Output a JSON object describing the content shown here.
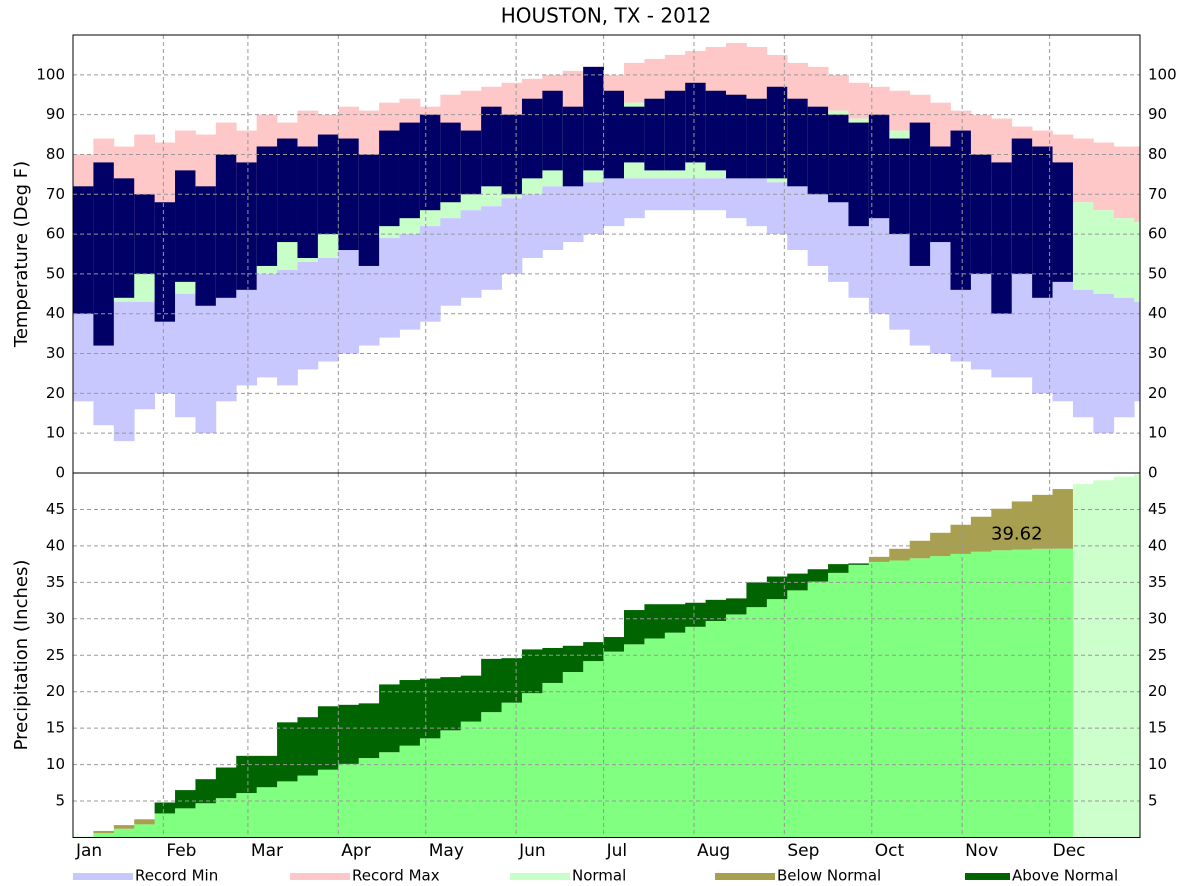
{
  "chart_data": [
    {
      "type": "range",
      "title": "HOUSTON, TX - 2012",
      "ylabel": "Temperature (Deg F)",
      "ylim": [
        0,
        110
      ],
      "yticks": [
        0,
        10,
        20,
        30,
        40,
        50,
        60,
        70,
        80,
        90,
        100
      ],
      "grid": true,
      "series": [
        {
          "name": "Record Min",
          "color": "#c8c8ff",
          "values": [
            18,
            12,
            8,
            16,
            20,
            14,
            10,
            18,
            22,
            24,
            22,
            26,
            28,
            30,
            32,
            34,
            36,
            38,
            42,
            44,
            46,
            50,
            54,
            56,
            58,
            60,
            62,
            64,
            66,
            66,
            66,
            66,
            64,
            62,
            60,
            56,
            52,
            48,
            44,
            40,
            36,
            32,
            30,
            28,
            26,
            24,
            24,
            20,
            18,
            14,
            10,
            14,
            18
          ]
        },
        {
          "name": "Record Max",
          "color": "#ffc8c8",
          "values": [
            80,
            84,
            82,
            85,
            83,
            86,
            85,
            88,
            86,
            90,
            88,
            91,
            90,
            92,
            91,
            93,
            94,
            92,
            95,
            96,
            97,
            98,
            99,
            100,
            101,
            102,
            100,
            103,
            104,
            105,
            106,
            107,
            108,
            107,
            105,
            103,
            102,
            100,
            98,
            97,
            96,
            95,
            93,
            91,
            90,
            89,
            87,
            86,
            85,
            84,
            83,
            82,
            82
          ]
        },
        {
          "name": "Normal",
          "color": "#c8ffc8",
          "low": [
            43,
            43,
            43,
            43,
            44,
            45,
            46,
            47,
            48,
            50,
            51,
            53,
            54,
            56,
            57,
            59,
            60,
            62,
            64,
            66,
            67,
            69,
            70,
            72,
            73,
            73,
            74,
            74,
            74,
            74,
            74,
            74,
            74,
            74,
            73,
            72,
            71,
            70,
            68,
            66,
            64,
            62,
            60,
            58,
            56,
            54,
            52,
            50,
            48,
            46,
            45,
            44,
            43
          ],
          "high": [
            63,
            63,
            63,
            63,
            64,
            65,
            66,
            67,
            68,
            70,
            71,
            73,
            74,
            76,
            77,
            79,
            80,
            82,
            83,
            85,
            86,
            87,
            89,
            90,
            91,
            92,
            93,
            93,
            94,
            94,
            94,
            94,
            94,
            94,
            93,
            93,
            92,
            91,
            89,
            88,
            86,
            84,
            82,
            80,
            78,
            76,
            74,
            72,
            70,
            68,
            66,
            64,
            63
          ]
        },
        {
          "color": "#000066",
          "low": [
            40,
            32,
            44,
            50,
            38,
            48,
            42,
            44,
            46,
            52,
            58,
            54,
            60,
            56,
            52,
            62,
            64,
            66,
            68,
            70,
            72,
            70,
            74,
            76,
            72,
            76,
            74,
            78,
            76,
            76,
            78,
            76,
            74,
            74,
            74,
            72,
            70,
            68,
            62,
            64,
            60,
            52,
            58,
            46,
            50,
            40,
            50,
            44,
            48,
            null,
            null,
            null,
            null
          ],
          "high": [
            72,
            78,
            74,
            70,
            68,
            76,
            72,
            80,
            78,
            82,
            84,
            82,
            85,
            84,
            80,
            86,
            88,
            90,
            88,
            86,
            92,
            90,
            94,
            96,
            92,
            102,
            96,
            92,
            94,
            96,
            98,
            96,
            95,
            94,
            97,
            94,
            92,
            90,
            88,
            90,
            84,
            88,
            82,
            86,
            80,
            78,
            84,
            82,
            78,
            null,
            null,
            null,
            null
          ]
        }
      ]
    },
    {
      "type": "area",
      "ylabel": "Precipitation (Inches)",
      "x": [
        1,
        8,
        15,
        22,
        29,
        36,
        43,
        50,
        57,
        64,
        71,
        78,
        85,
        92,
        99,
        106,
        113,
        120,
        127,
        134,
        141,
        148,
        155,
        162,
        169,
        176,
        183,
        190,
        197,
        204,
        211,
        218,
        225,
        232,
        239,
        246,
        253,
        260,
        267,
        274,
        281,
        288,
        295,
        302,
        309,
        316,
        323,
        330,
        337,
        344,
        351,
        358,
        365
      ],
      "xlim": [
        1,
        367
      ],
      "xticks": [
        {
          "value": 1,
          "label": "Jan"
        },
        {
          "value": 32,
          "label": "Feb"
        },
        {
          "value": 61,
          "label": "Mar"
        },
        {
          "value": 92,
          "label": "Apr"
        },
        {
          "value": 122,
          "label": "May"
        },
        {
          "value": 153,
          "label": "Jun"
        },
        {
          "value": 183,
          "label": "Jul"
        },
        {
          "value": 214,
          "label": "Aug"
        },
        {
          "value": 245,
          "label": "Sep"
        },
        {
          "value": 275,
          "label": "Oct"
        },
        {
          "value": 306,
          "label": "Nov"
        },
        {
          "value": 336,
          "label": "Dec"
        }
      ],
      "ylim": [
        0,
        50
      ],
      "yticks": [
        5,
        10,
        15,
        20,
        25,
        30,
        35,
        40,
        45
      ],
      "grid": true,
      "series": [
        {
          "color": "#80ff80",
          "future_color": "#ccffcc",
          "values": [
            0.1,
            0.9,
            1.7,
            2.5,
            3.3,
            4.0,
            4.7,
            5.4,
            6.1,
            6.9,
            7.7,
            8.5,
            9.3,
            10.1,
            10.9,
            11.7,
            12.6,
            13.6,
            14.7,
            15.9,
            17.2,
            18.5,
            19.8,
            21.2,
            22.7,
            24.2,
            25.5,
            26.5,
            27.3,
            28.1,
            28.9,
            29.7,
            30.6,
            31.6,
            32.7,
            33.9,
            35.1,
            36.3,
            37.4,
            38.5,
            39.6,
            40.7,
            41.8,
            42.9,
            44.0,
            45.1,
            46.1,
            47.0,
            47.8,
            48.5,
            49.0,
            49.5,
            49.8
          ]
        },
        {
          "values": [
            0.1,
            0.6,
            1.2,
            1.8,
            4.8,
            6.5,
            8.0,
            9.6,
            11.2,
            11.2,
            15.8,
            16.5,
            18.0,
            18.2,
            18.4,
            21.0,
            21.6,
            21.8,
            22.0,
            22.2,
            24.5,
            24.6,
            25.8,
            26.0,
            26.3,
            26.8,
            27.5,
            31.2,
            32.0,
            32.0,
            32.2,
            32.6,
            32.8,
            35.0,
            35.8,
            36.2,
            36.8,
            37.5,
            37.6,
            37.8,
            38.0,
            38.3,
            38.6,
            38.9,
            39.2,
            39.4,
            39.5,
            39.6,
            39.62,
            null,
            null,
            null,
            null
          ]
        }
      ],
      "legend": [
        {
          "name": "Below Normal",
          "color": "#a8a050"
        },
        {
          "name": "Above Normal",
          "color": "#006400"
        }
      ]
    }
  ]
}
